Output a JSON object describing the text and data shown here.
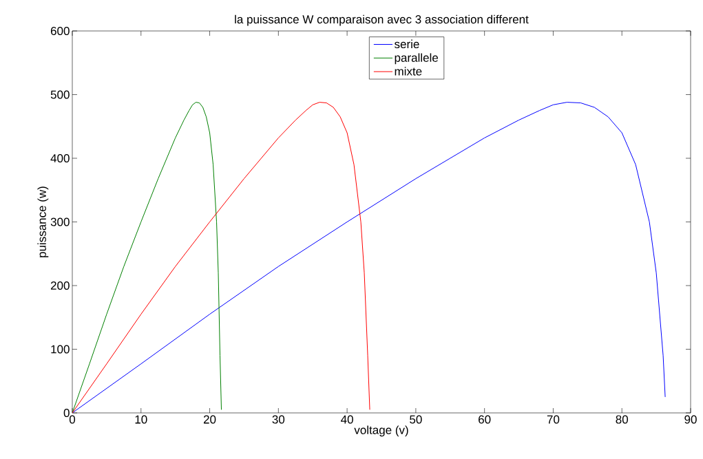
{
  "chart_data": {
    "type": "line",
    "title": "la puissance W comparaison avec 3 association different",
    "xlabel": "voltage (v)",
    "ylabel": "puissance (w)",
    "xlim": [
      0,
      90
    ],
    "ylim": [
      0,
      600
    ],
    "xticks": [
      0,
      10,
      20,
      30,
      40,
      50,
      60,
      70,
      80,
      90
    ],
    "yticks": [
      0,
      100,
      200,
      300,
      400,
      500,
      600
    ],
    "grid": false,
    "legend": "top",
    "marker": "none",
    "line_style": "solid",
    "series": [
      {
        "name": "serie",
        "color": "#0000ff",
        "x": [
          0,
          10,
          20,
          30,
          40,
          50,
          55,
          60,
          65,
          68,
          70,
          72,
          74,
          76,
          78,
          80,
          82,
          84,
          85,
          86,
          86.3
        ],
        "values": [
          0,
          77,
          155,
          230,
          300,
          368,
          400,
          432,
          460,
          475,
          484,
          488,
          487,
          480,
          465,
          440,
          390,
          300,
          220,
          90,
          25
        ]
      },
      {
        "name": "parallele",
        "color": "#008000",
        "x": [
          0,
          2.5,
          5,
          7.5,
          10,
          12.5,
          13.75,
          15,
          16.25,
          17,
          17.5,
          18,
          18.5,
          19,
          19.5,
          20,
          20.5,
          21,
          21.25,
          21.5,
          21.7
        ],
        "values": [
          0,
          77,
          155,
          230,
          300,
          368,
          400,
          432,
          460,
          475,
          484,
          488,
          487,
          480,
          465,
          440,
          390,
          300,
          220,
          90,
          5
        ]
      },
      {
        "name": "mixte",
        "color": "#ff0000",
        "x": [
          0,
          5,
          10,
          15,
          20,
          25,
          27.5,
          30,
          32.5,
          34,
          35,
          36,
          37,
          38,
          39,
          40,
          41,
          42,
          42.5,
          43,
          43.3
        ],
        "values": [
          0,
          77,
          155,
          230,
          300,
          368,
          400,
          432,
          460,
          475,
          484,
          488,
          487,
          480,
          465,
          440,
          390,
          300,
          220,
          90,
          5
        ]
      }
    ]
  }
}
